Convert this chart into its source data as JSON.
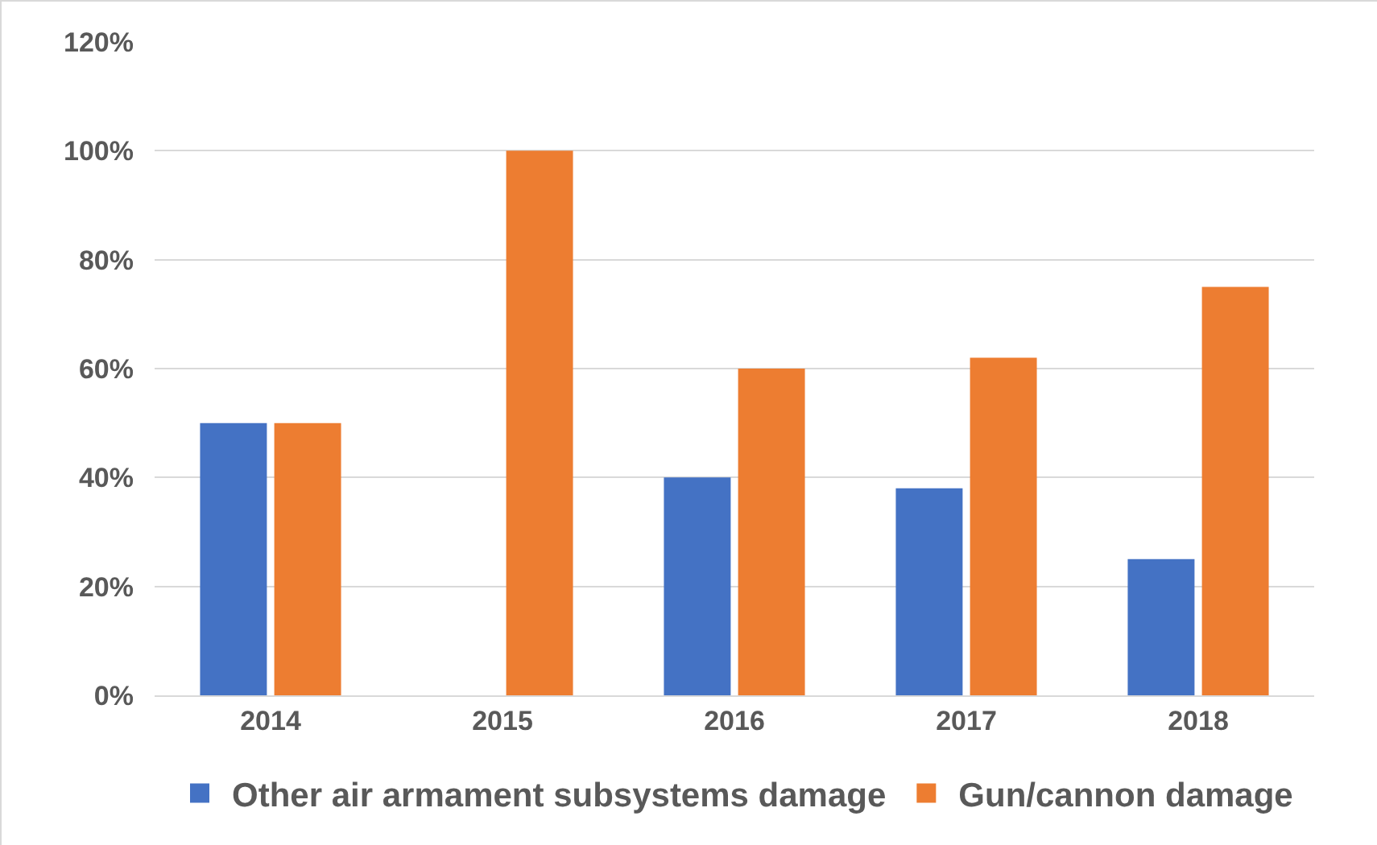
{
  "chart_data": {
    "type": "bar",
    "categories": [
      "2014",
      "2015",
      "2016",
      "2017",
      "2018"
    ],
    "series": [
      {
        "name": "Other air armament subsystems damage",
        "color": "#4472c4",
        "values": [
          50,
          0,
          40,
          38,
          25
        ]
      },
      {
        "name": "Gun/cannon damage",
        "color": "#ed7d31",
        "values": [
          50,
          100,
          60,
          62,
          75
        ]
      }
    ],
    "ylim": [
      0,
      120
    ],
    "yticks": [
      {
        "value": 0,
        "label": "0%"
      },
      {
        "value": 20,
        "label": "20%"
      },
      {
        "value": 40,
        "label": "40%"
      },
      {
        "value": 60,
        "label": "60%"
      },
      {
        "value": 80,
        "label": "80%"
      },
      {
        "value": 100,
        "label": "100%"
      },
      {
        "value": 120,
        "label": "120%"
      }
    ],
    "grid": "y",
    "legend": "bottom"
  }
}
